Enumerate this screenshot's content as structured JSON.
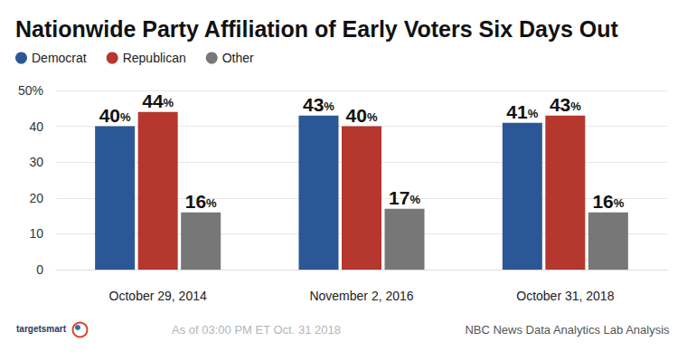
{
  "chart_data": {
    "type": "bar",
    "title": "Nationwide Party Affiliation of Early Voters Six Days Out",
    "categories": [
      "October 29, 2014",
      "November 2, 2016",
      "October 31, 2018"
    ],
    "series": [
      {
        "name": "Democrat",
        "color": "#2b5797",
        "values": [
          40,
          43,
          41
        ],
        "value_labels": [
          "40%",
          "43%",
          "41%"
        ]
      },
      {
        "name": "Republican",
        "color": "#b5372d",
        "values": [
          44,
          40,
          43
        ],
        "value_labels": [
          "44%",
          "40%",
          "43%"
        ]
      },
      {
        "name": "Other",
        "color": "#777777",
        "values": [
          16,
          17,
          16
        ],
        "value_labels": [
          "16%",
          "17%",
          "16%"
        ]
      }
    ],
    "ylim": [
      0,
      50
    ],
    "yticks": [
      0,
      10,
      20,
      30,
      40,
      {
        "value": 50,
        "label": "50%"
      }
    ],
    "grid": true,
    "legend": "top-left",
    "data_labels": true,
    "annotations": [
      "targetsmart",
      "As of 03:00 PM ET Oct. 31 2018",
      "NBC News Data Analytics Lab Analysis"
    ]
  }
}
